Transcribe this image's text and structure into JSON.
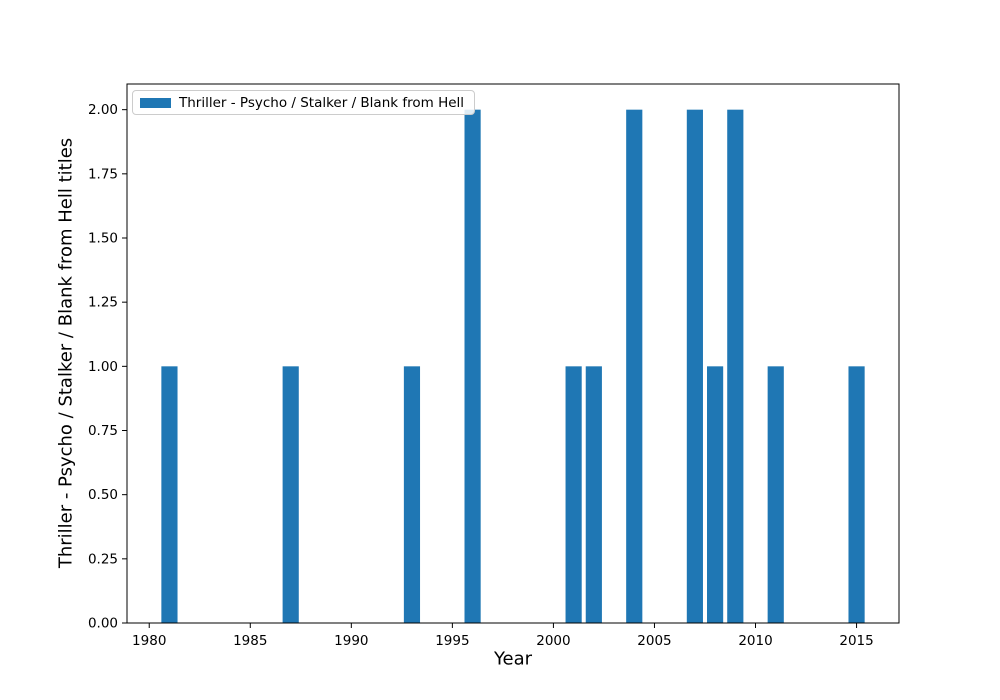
{
  "chart_data": {
    "type": "bar",
    "title": "",
    "xlabel": "Year",
    "ylabel": "Thriller - Psycho / Stalker / Blank from Hell titles",
    "legend": {
      "label": "Thriller - Psycho / Stalker / Blank from Hell",
      "position": "upper left",
      "swatch_color": "#1f77b4"
    },
    "bar_color": "#1f77b4",
    "bar_width_years": 0.8,
    "x": [
      1981,
      1987,
      1993,
      1996,
      2001,
      2002,
      2004,
      2007,
      2008,
      2009,
      2011,
      2015
    ],
    "values": [
      1,
      1,
      1,
      2,
      1,
      1,
      2,
      2,
      1,
      2,
      1,
      1
    ],
    "xlim": [
      1978.9,
      2017.1
    ],
    "ylim": [
      0,
      2.1
    ],
    "x_ticks": [
      "1980",
      "1985",
      "1990",
      "1995",
      "2000",
      "2005",
      "2010",
      "2015"
    ],
    "y_ticks": [
      "0.00",
      "0.25",
      "0.50",
      "0.75",
      "1.00",
      "1.25",
      "1.50",
      "1.75",
      "2.00"
    ],
    "grid": false,
    "axis_color": "#000000"
  }
}
